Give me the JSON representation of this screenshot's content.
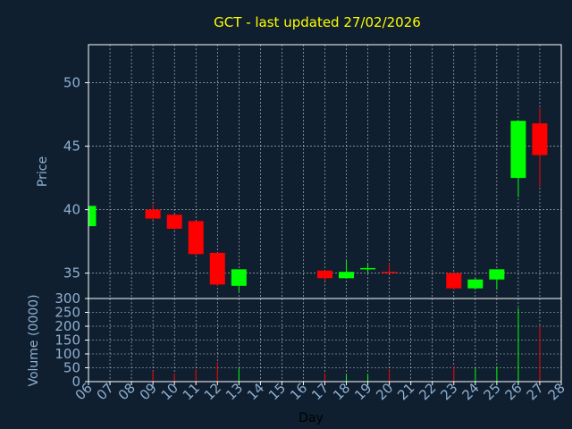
{
  "chart_data": {
    "type": "candlestick",
    "title": "GCT - last updated 27/02/2026",
    "xlabel": "Day",
    "ylabel_price": "Price",
    "ylabel_volume": "Volume (0000)",
    "x_ticks": [
      "06",
      "07",
      "08",
      "09",
      "10",
      "11",
      "12",
      "13",
      "14",
      "15",
      "16",
      "17",
      "18",
      "19",
      "20",
      "21",
      "22",
      "23",
      "24",
      "25",
      "26",
      "27",
      "28"
    ],
    "price_ylim": [
      33,
      53
    ],
    "price_ticks": [
      35,
      40,
      45,
      50
    ],
    "volume_ylim": [
      0,
      300
    ],
    "volume_ticks": [
      0,
      50,
      100,
      150,
      200,
      250,
      300
    ],
    "grid": true,
    "colors": {
      "up": "#00ff00",
      "down": "#ff0000",
      "title": "#ffff00",
      "axis_text": "#8fb0d0",
      "background": "#0f1f30"
    },
    "candles": [
      {
        "day": "06",
        "open": 38.7,
        "high": 40.3,
        "low": 38.7,
        "close": 40.3,
        "volume": 0
      },
      {
        "day": "09",
        "open": 40.0,
        "high": 40.4,
        "low": 39.2,
        "close": 39.3,
        "volume": 38
      },
      {
        "day": "10",
        "open": 39.6,
        "high": 39.6,
        "low": 38.4,
        "close": 38.5,
        "volume": 30
      },
      {
        "day": "11",
        "open": 39.1,
        "high": 39.1,
        "low": 36.4,
        "close": 36.5,
        "volume": 45
      },
      {
        "day": "12",
        "open": 36.6,
        "high": 36.6,
        "low": 34.0,
        "close": 34.1,
        "volume": 70
      },
      {
        "day": "13",
        "open": 34.0,
        "high": 35.3,
        "low": 33.5,
        "close": 35.3,
        "volume": 50
      },
      {
        "day": "17",
        "open": 35.2,
        "high": 35.2,
        "low": 34.4,
        "close": 34.6,
        "volume": 30
      },
      {
        "day": "18",
        "open": 34.6,
        "high": 36.0,
        "low": 34.6,
        "close": 35.1,
        "volume": 25
      },
      {
        "day": "19",
        "open": 35.3,
        "high": 35.8,
        "low": 35.0,
        "close": 35.4,
        "volume": 25
      },
      {
        "day": "20",
        "open": 35.1,
        "high": 35.8,
        "low": 35.0,
        "close": 35.0,
        "volume": 45
      },
      {
        "day": "23",
        "open": 35.0,
        "high": 35.0,
        "low": 33.7,
        "close": 33.8,
        "volume": 55
      },
      {
        "day": "24",
        "open": 33.8,
        "high": 34.6,
        "low": 33.7,
        "close": 34.5,
        "volume": 50
      },
      {
        "day": "25",
        "open": 34.5,
        "high": 35.3,
        "low": 33.7,
        "close": 35.3,
        "volume": 55
      },
      {
        "day": "26",
        "open": 42.5,
        "high": 47.0,
        "low": 41.0,
        "close": 47.0,
        "volume": 265
      },
      {
        "day": "27",
        "open": 46.8,
        "high": 48.0,
        "low": 41.8,
        "close": 44.3,
        "volume": 200
      }
    ]
  }
}
